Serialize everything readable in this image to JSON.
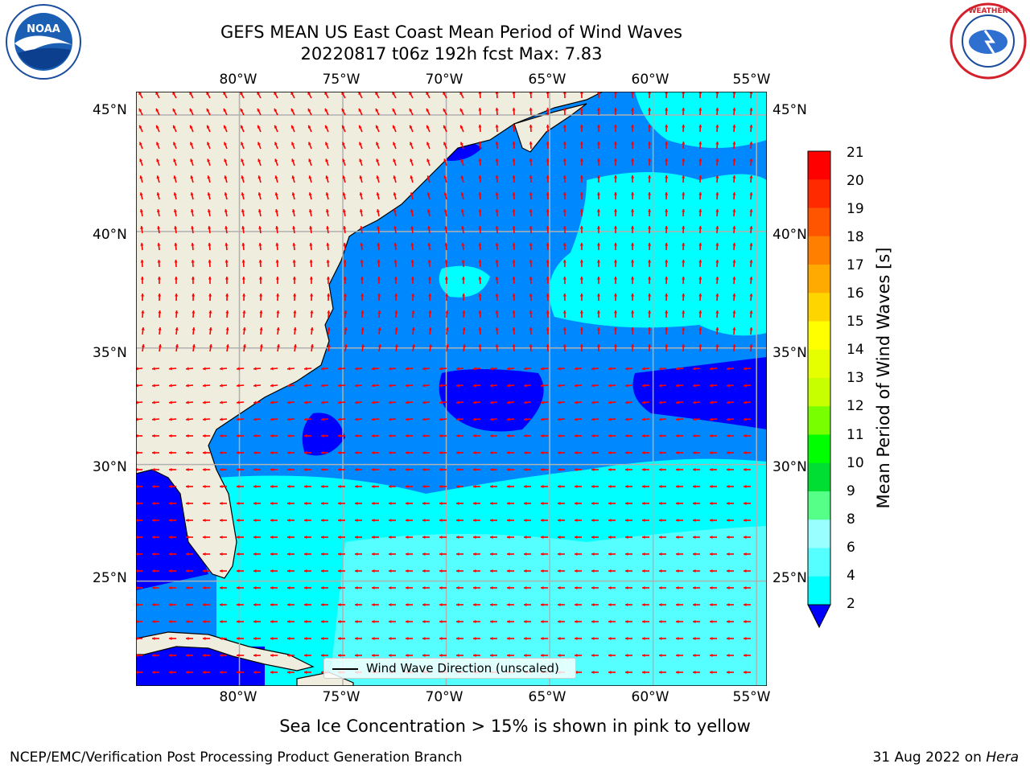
{
  "header": {
    "title_line1": "GEFS MEAN US East Coast Mean Period of Wind Waves",
    "title_line2": "20220817 t06z 192h fcst   Max: 7.83"
  },
  "logos": {
    "left": "NOAA",
    "right": "NATIONAL WEATHER SERVICE"
  },
  "axes": {
    "lon_labels": [
      "80°W",
      "75°W",
      "70°W",
      "65°W",
      "60°W",
      "55°W"
    ],
    "lat_labels": [
      "45°N",
      "40°N",
      "35°N",
      "30°N",
      "25°N"
    ],
    "lon_range": [
      -85,
      -54.5
    ],
    "lat_range": [
      20.5,
      46
    ],
    "grid": true
  },
  "colorbar": {
    "title": "Mean Period of Wind Waves [s]",
    "ticks": [
      "21",
      "20",
      "19",
      "18",
      "17",
      "16",
      "15",
      "14",
      "13",
      "12",
      "11",
      "10",
      "9",
      "8",
      "6",
      "4",
      "2"
    ],
    "colors": [
      "#ff0000",
      "#ff2a00",
      "#ff5500",
      "#ff8000",
      "#ffaa00",
      "#ffd500",
      "#ffff00",
      "#e6ff00",
      "#c8ff00",
      "#78ff00",
      "#00ff00",
      "#00dd33",
      "#55ff88",
      "#99ffff",
      "#55ffff",
      "#00ffff",
      "#0088ff"
    ],
    "under_color": "#0000ff"
  },
  "legend": {
    "label": "Wind Wave Direction (unscaled)"
  },
  "map": {
    "land_color": "#efedde",
    "ocean_colors": {
      "lt2": "#0000ff",
      "2to4": "#0088ff",
      "4to6": "#00ffff",
      "6to8": "#55ffff"
    },
    "arrow_color": "#ff0000"
  },
  "subtitle": "Sea Ice Concentration > 15% is shown in pink to yellow",
  "footer": {
    "left": "NCEP/EMC/Verification Post Processing Product Generation Branch",
    "date": "31 Aug 2022 on ",
    "machine": "Hera"
  }
}
